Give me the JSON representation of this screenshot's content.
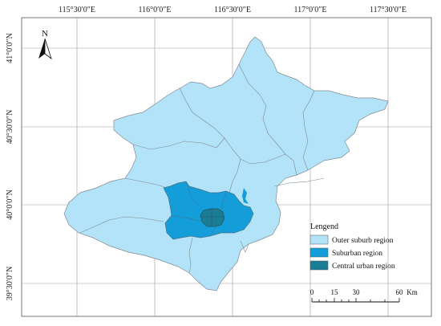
{
  "map": {
    "axes": {
      "longitude_labels": [
        "115°30′0″E",
        "116°0′0″E",
        "116°30′0″E",
        "117°0′0″E",
        "117°30′0″E"
      ],
      "latitude_labels": [
        "41°0′0″N",
        "40°30′0″N",
        "40°0′0″N",
        "39°30′0″N"
      ]
    },
    "north_arrow": {
      "label": "N"
    },
    "legend": {
      "title": "Lengend",
      "items": [
        {
          "label": "Outer suburb region",
          "color": "#b3e3f8"
        },
        {
          "label": "Suburban region",
          "color": "#139ed9"
        },
        {
          "label": "Central urban region",
          "color": "#1a7d96"
        }
      ]
    },
    "scale_bar": {
      "ticks": [
        "0",
        "15",
        "30",
        "60"
      ],
      "unit": "Km"
    },
    "colors": {
      "outer": "#b3e3f8",
      "suburban": "#139ed9",
      "central": "#1a7d96",
      "boundary": "#7f8a92",
      "grid": "#9a9a9a"
    }
  }
}
